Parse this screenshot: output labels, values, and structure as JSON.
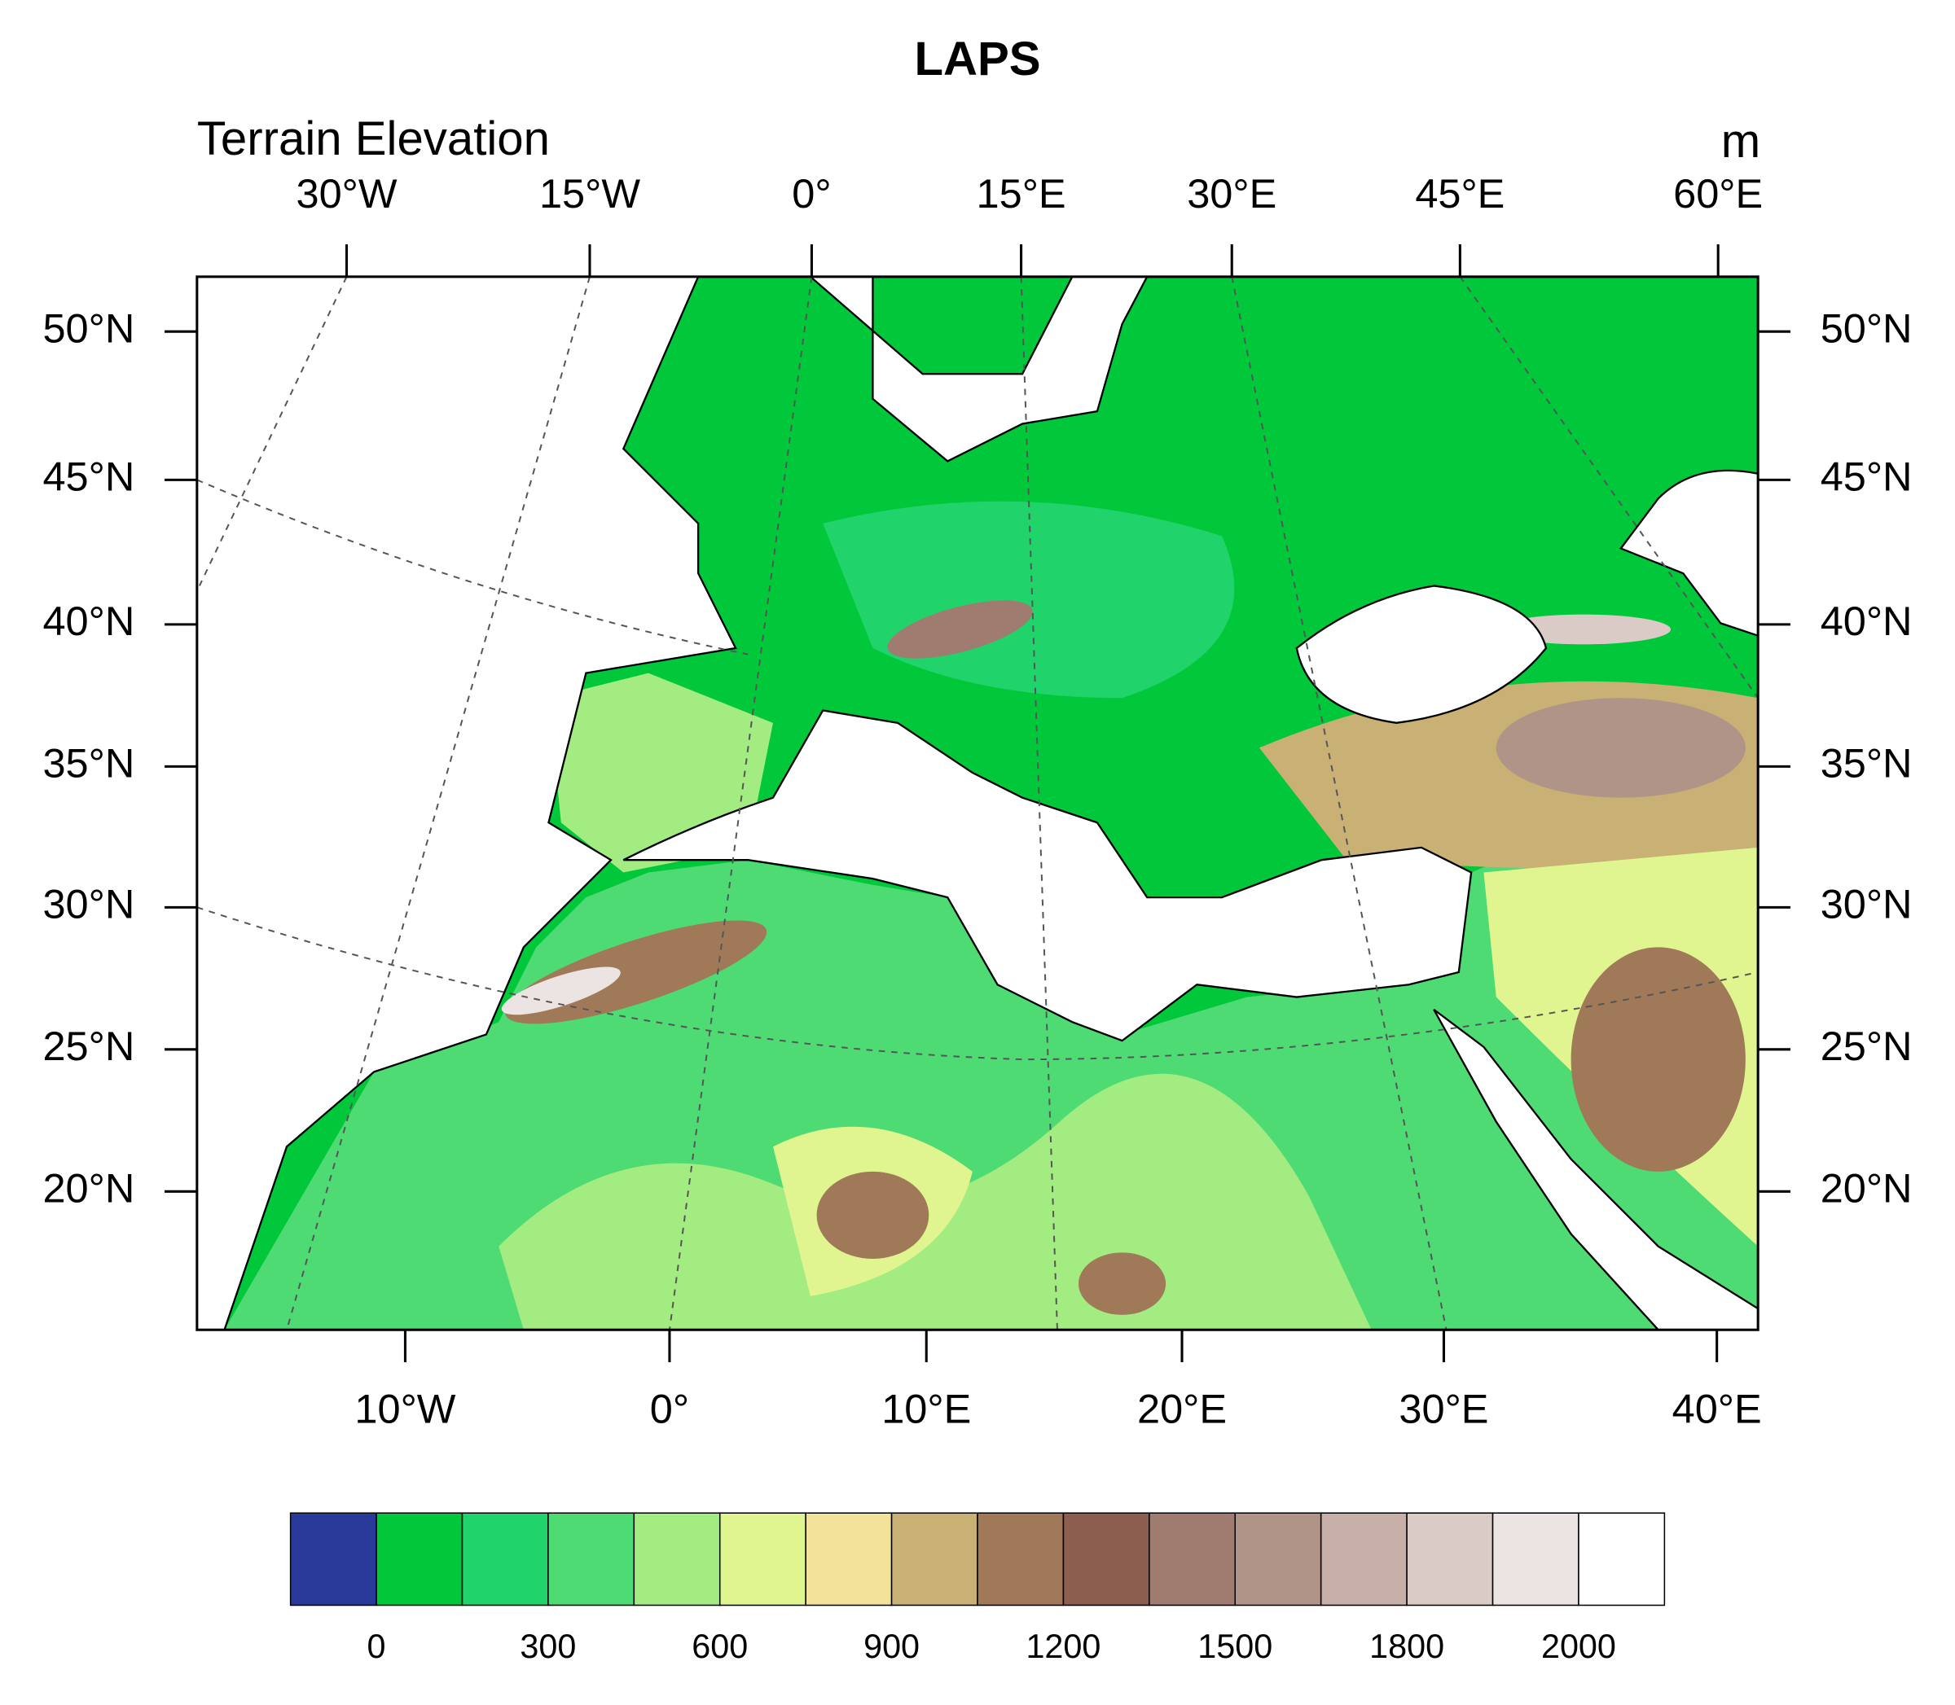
{
  "title": "LAPS",
  "subtitle": "Terrain Elevation",
  "units": "m",
  "top_lon_labels": [
    "30°W",
    "15°W",
    "0°",
    "15°E",
    "30°E",
    "45°E",
    "60°E"
  ],
  "bottom_lon_labels": [
    "10°W",
    "0°",
    "10°E",
    "20°E",
    "30°E",
    "40°E"
  ],
  "lat_labels": [
    "50°N",
    "45°N",
    "40°N",
    "35°N",
    "30°N",
    "25°N",
    "20°N"
  ],
  "colorbar": {
    "colors": [
      "#2a3a9a",
      "#00c83a",
      "#20d36a",
      "#4edb73",
      "#a3ec82",
      "#e0f590",
      "#f3e29a",
      "#c9b074",
      "#a07a58",
      "#8b5e50",
      "#a07c70",
      "#b09488",
      "#c7b0a8",
      "#dacbc6",
      "#ece4e2",
      "#ffffff"
    ],
    "labels": [
      "0",
      "300",
      "600",
      "900",
      "1200",
      "1500",
      "1800",
      "2000"
    ]
  }
}
